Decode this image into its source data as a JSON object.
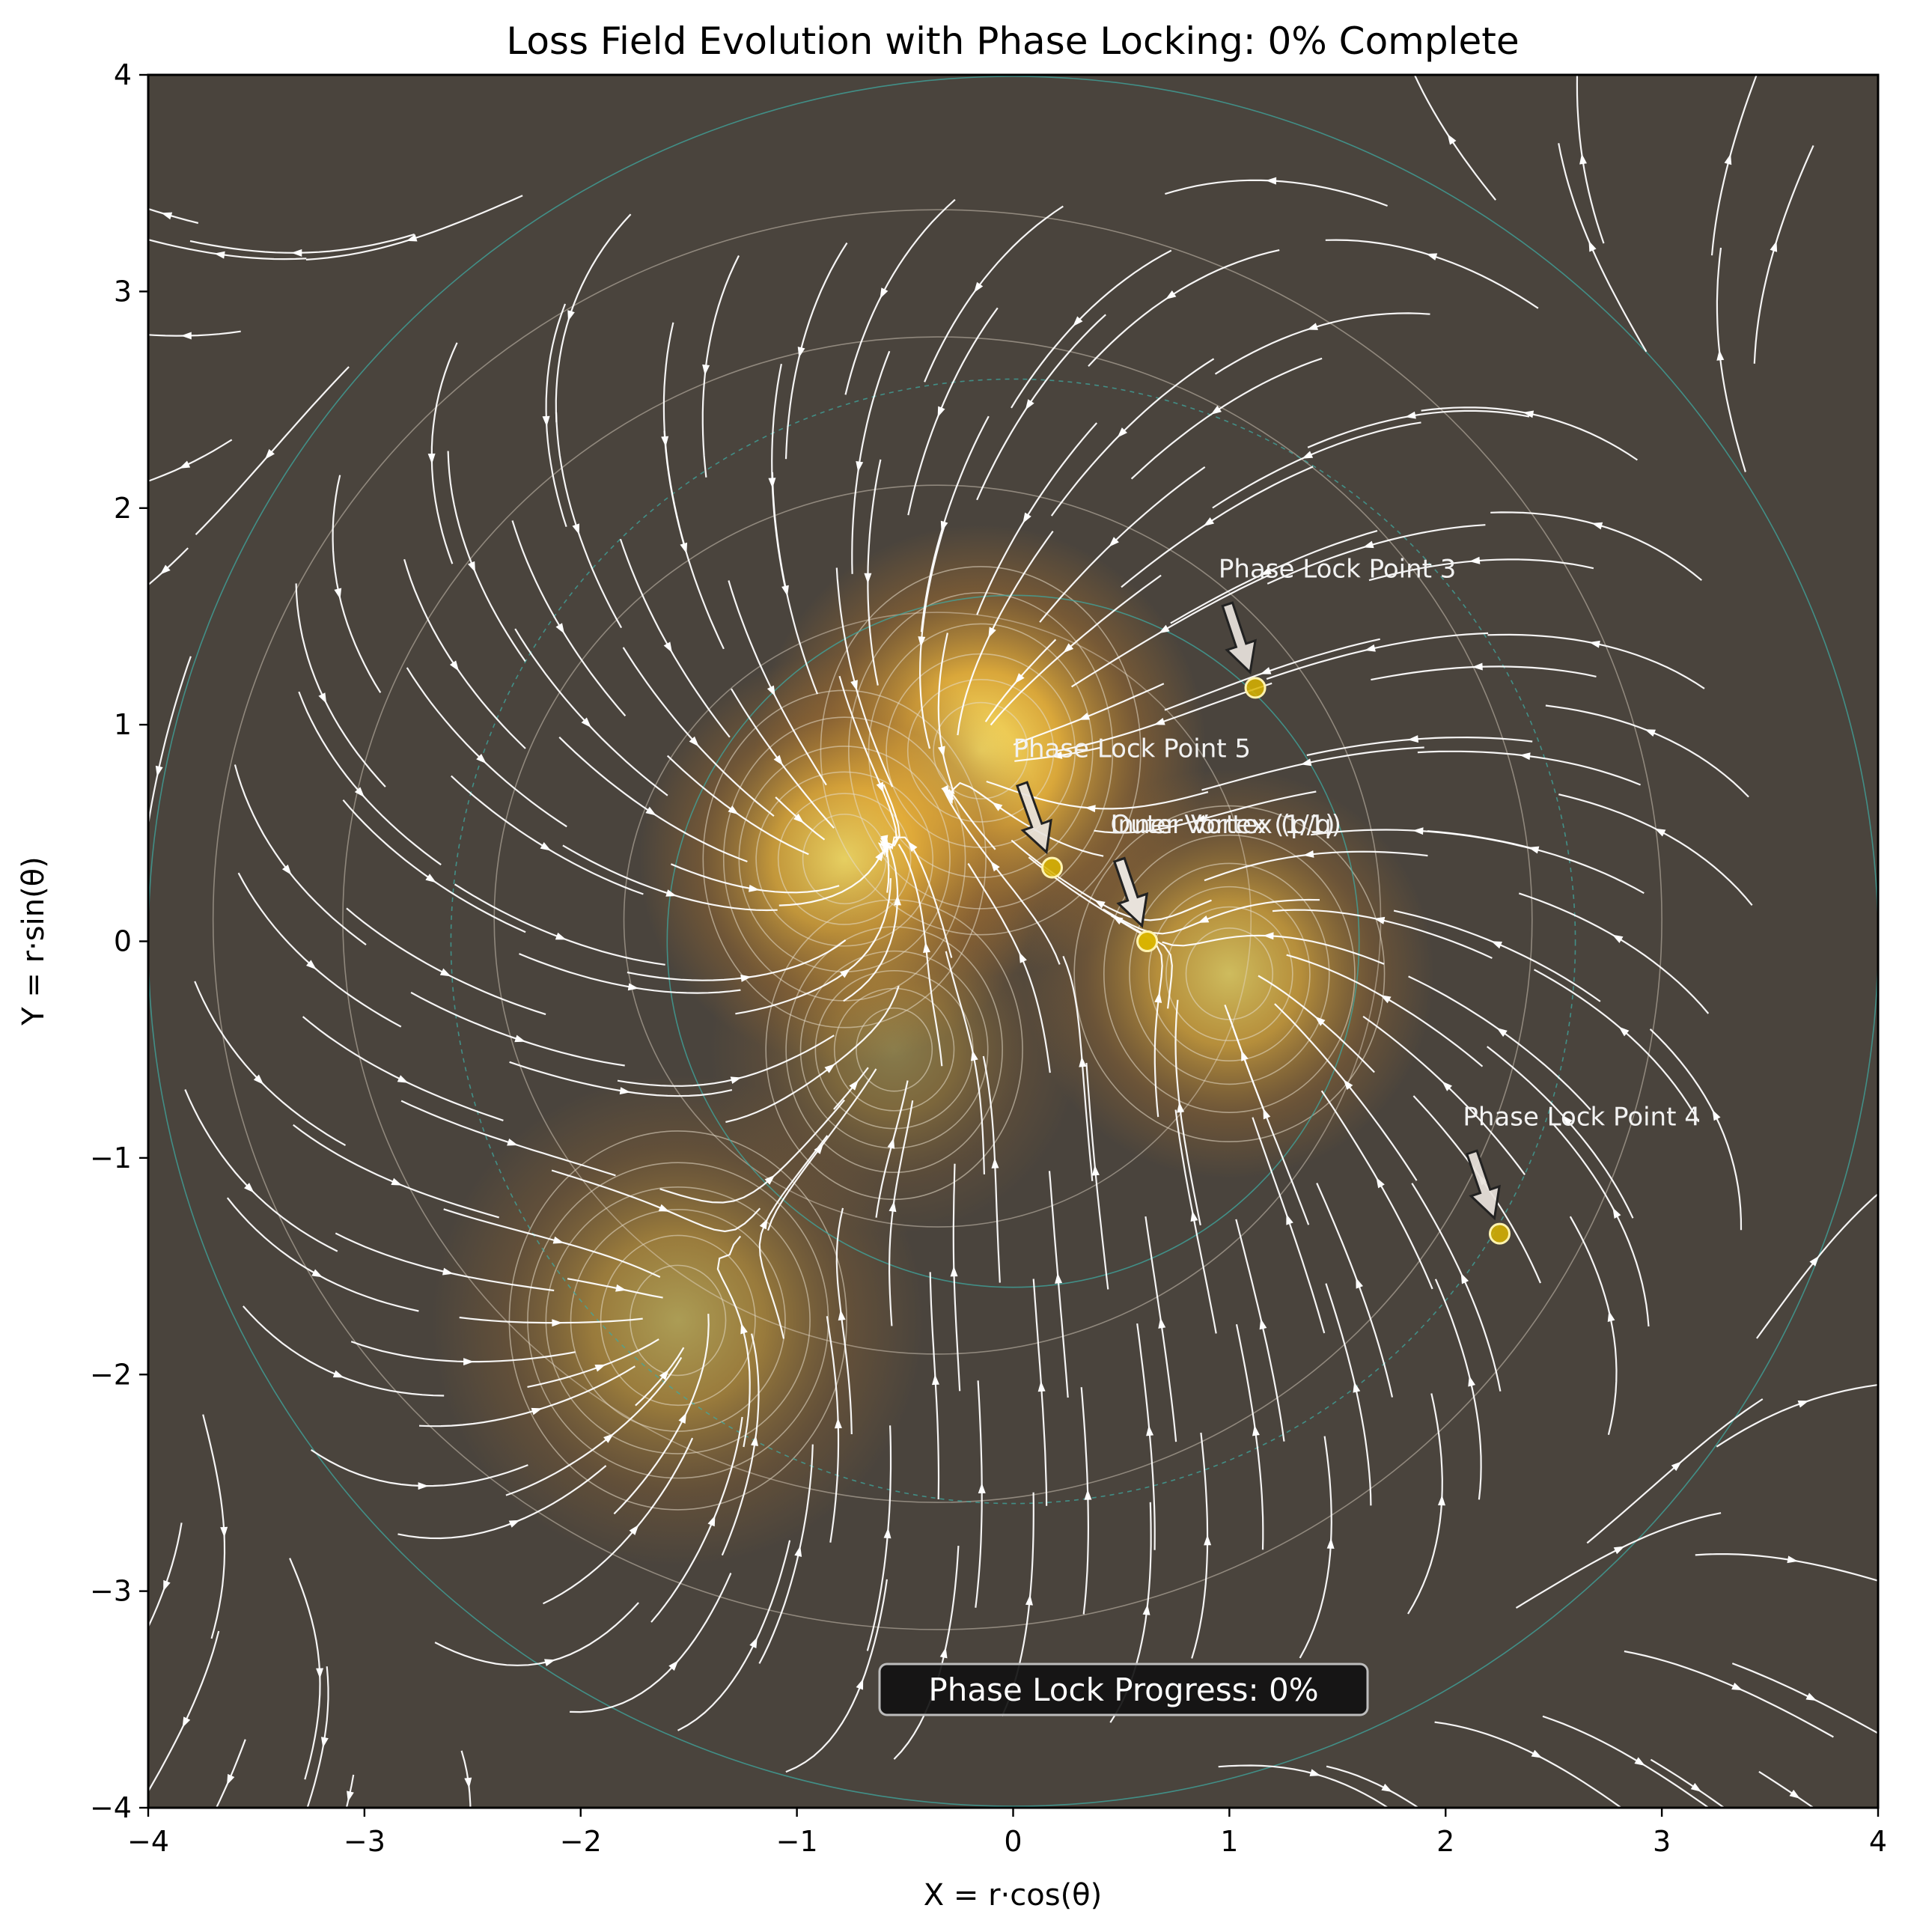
{
  "chart_data": {
    "type": "heatmap",
    "title": "Loss Field Evolution with Phase Locking: 0% Complete",
    "xlabel": "X = r·cos(θ)",
    "ylabel": "Y = r·sin(θ)",
    "xlim": [
      -4,
      4
    ],
    "ylim": [
      -4,
      4
    ],
    "xticks": [
      -4,
      -3,
      -2,
      -1,
      0,
      1,
      2,
      3,
      4
    ],
    "yticks": [
      -4,
      -3,
      -2,
      -1,
      0,
      1,
      2,
      3,
      4
    ],
    "xtick_labels": [
      "−4",
      "−3",
      "−2",
      "−1",
      "0",
      "1",
      "2",
      "3",
      "4"
    ],
    "ytick_labels": [
      "−4",
      "−3",
      "−2",
      "−1",
      "0",
      "1",
      "2",
      "3",
      "4"
    ],
    "grid": false,
    "field_wells": [
      {
        "x": -0.15,
        "y": 0.88,
        "strength": 1.0,
        "width": 0.55
      },
      {
        "x": -0.78,
        "y": 0.38,
        "strength": 0.85,
        "width": 0.5
      },
      {
        "x": 1.0,
        "y": -0.15,
        "strength": 0.75,
        "width": 0.5
      },
      {
        "x": -1.55,
        "y": -1.75,
        "strength": 0.55,
        "width": 0.6
      },
      {
        "x": -0.55,
        "y": -0.5,
        "strength": 0.35,
        "width": 0.45
      }
    ],
    "reference_circles": [
      {
        "radius": 1.6,
        "style": "solid"
      },
      {
        "radius": 2.6,
        "style": "dashed"
      },
      {
        "radius": 4.0,
        "style": "solid"
      }
    ],
    "annotations": [
      {
        "label": "Phase Lock Point 3",
        "x": 1.12,
        "y": 1.17,
        "text_x": 0.95,
        "text_y": 1.68
      },
      {
        "label": "Phase Lock Point 5",
        "x": 0.18,
        "y": 0.34,
        "text_x": 0.0,
        "text_y": 0.85
      },
      {
        "label": "Inner Vortex (1/1)",
        "x": 0.62,
        "y": 0.0,
        "text_x": 0.45,
        "text_y": 0.5
      },
      {
        "label": "Outer Vortex (p/q)",
        "x": 0.62,
        "y": 0.0,
        "text_x": 0.45,
        "text_y": 0.5
      },
      {
        "label": "Phase Lock Point 4",
        "x": 2.25,
        "y": -1.35,
        "text_x": 2.08,
        "text_y": -0.85
      }
    ],
    "progress_label": "Phase Lock Progress: 0%",
    "progress_value": 0,
    "colors": {
      "background": "#4a443d",
      "well_core": "#ffe86a",
      "well_mid": "#f2b83a",
      "well_edge": "#9a6a30",
      "streamline": "#ffffff",
      "contour": "#e6dccb",
      "circle": "#3fa8a0",
      "marker_fill": "#d9b400",
      "marker_edge": "#fff3b0"
    }
  }
}
